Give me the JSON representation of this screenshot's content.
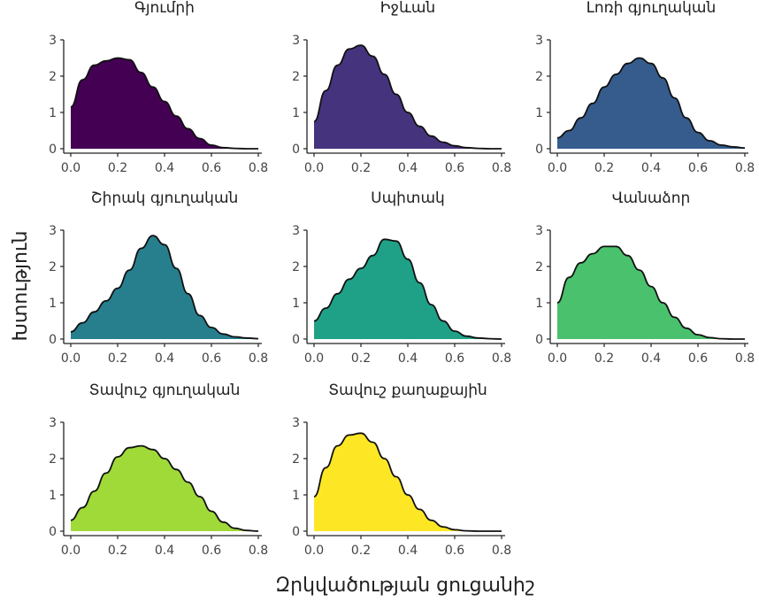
{
  "chart_data": {
    "type": "area",
    "xlabel": "Զրկվածության ցուցանիշ",
    "ylabel": "Խտություն",
    "xlim": [
      0,
      0.8
    ],
    "ylim": [
      0,
      3
    ],
    "x_ticks": [
      "0.0",
      "0.2",
      "0.4",
      "0.6",
      "0.8"
    ],
    "y_ticks": [
      "0",
      "1",
      "2",
      "3"
    ],
    "grid": false,
    "legend": "none",
    "x": [
      0,
      0.05,
      0.1,
      0.15,
      0.2,
      0.25,
      0.3,
      0.35,
      0.4,
      0.45,
      0.5,
      0.55,
      0.6,
      0.65,
      0.7,
      0.75,
      0.8
    ],
    "series": [
      {
        "name": "Գյումրի",
        "color": "#440154",
        "values": [
          1.15,
          1.9,
          2.3,
          2.42,
          2.5,
          2.45,
          2.1,
          1.7,
          1.3,
          0.9,
          0.55,
          0.28,
          0.1,
          0.03,
          0.01,
          0.0,
          0.0
        ]
      },
      {
        "name": "Իջևան",
        "color": "#46337E",
        "values": [
          0.75,
          1.6,
          2.3,
          2.75,
          2.85,
          2.55,
          2.05,
          1.5,
          1.0,
          0.62,
          0.35,
          0.18,
          0.08,
          0.03,
          0.01,
          0.0,
          0.0
        ]
      },
      {
        "name": "Լոռի գյուղական",
        "color": "#365C8D",
        "values": [
          0.3,
          0.5,
          0.85,
          1.25,
          1.7,
          2.05,
          2.35,
          2.5,
          2.35,
          1.95,
          1.4,
          0.85,
          0.45,
          0.22,
          0.1,
          0.05,
          0.02
        ]
      },
      {
        "name": "Շիրակ գյուղական",
        "color": "#277F8E",
        "values": [
          0.2,
          0.45,
          0.75,
          1.05,
          1.4,
          1.9,
          2.5,
          2.85,
          2.6,
          1.95,
          1.25,
          0.65,
          0.32,
          0.14,
          0.06,
          0.03,
          0.01
        ]
      },
      {
        "name": "Սպիտակ",
        "color": "#1FA187",
        "values": [
          0.5,
          0.85,
          1.25,
          1.65,
          1.95,
          2.3,
          2.75,
          2.7,
          2.2,
          1.55,
          0.95,
          0.5,
          0.22,
          0.08,
          0.03,
          0.01,
          0.0
        ]
      },
      {
        "name": "Վանաձոր",
        "color": "#4AC16D",
        "values": [
          1.0,
          1.7,
          2.1,
          2.35,
          2.55,
          2.55,
          2.3,
          1.9,
          1.45,
          1.0,
          0.6,
          0.3,
          0.12,
          0.04,
          0.01,
          0.0,
          0.0
        ]
      },
      {
        "name": "Տավուշ գյուղական",
        "color": "#A0DA39",
        "values": [
          0.3,
          0.65,
          1.1,
          1.6,
          2.05,
          2.3,
          2.35,
          2.25,
          2.0,
          1.7,
          1.35,
          0.95,
          0.55,
          0.25,
          0.08,
          0.02,
          0.0
        ]
      },
      {
        "name": "Տավուշ քաղաքային",
        "color": "#FDE725",
        "values": [
          0.95,
          1.75,
          2.35,
          2.65,
          2.7,
          2.45,
          2.0,
          1.5,
          1.0,
          0.6,
          0.3,
          0.12,
          0.04,
          0.01,
          0.0,
          0.0,
          0.0
        ]
      }
    ]
  }
}
